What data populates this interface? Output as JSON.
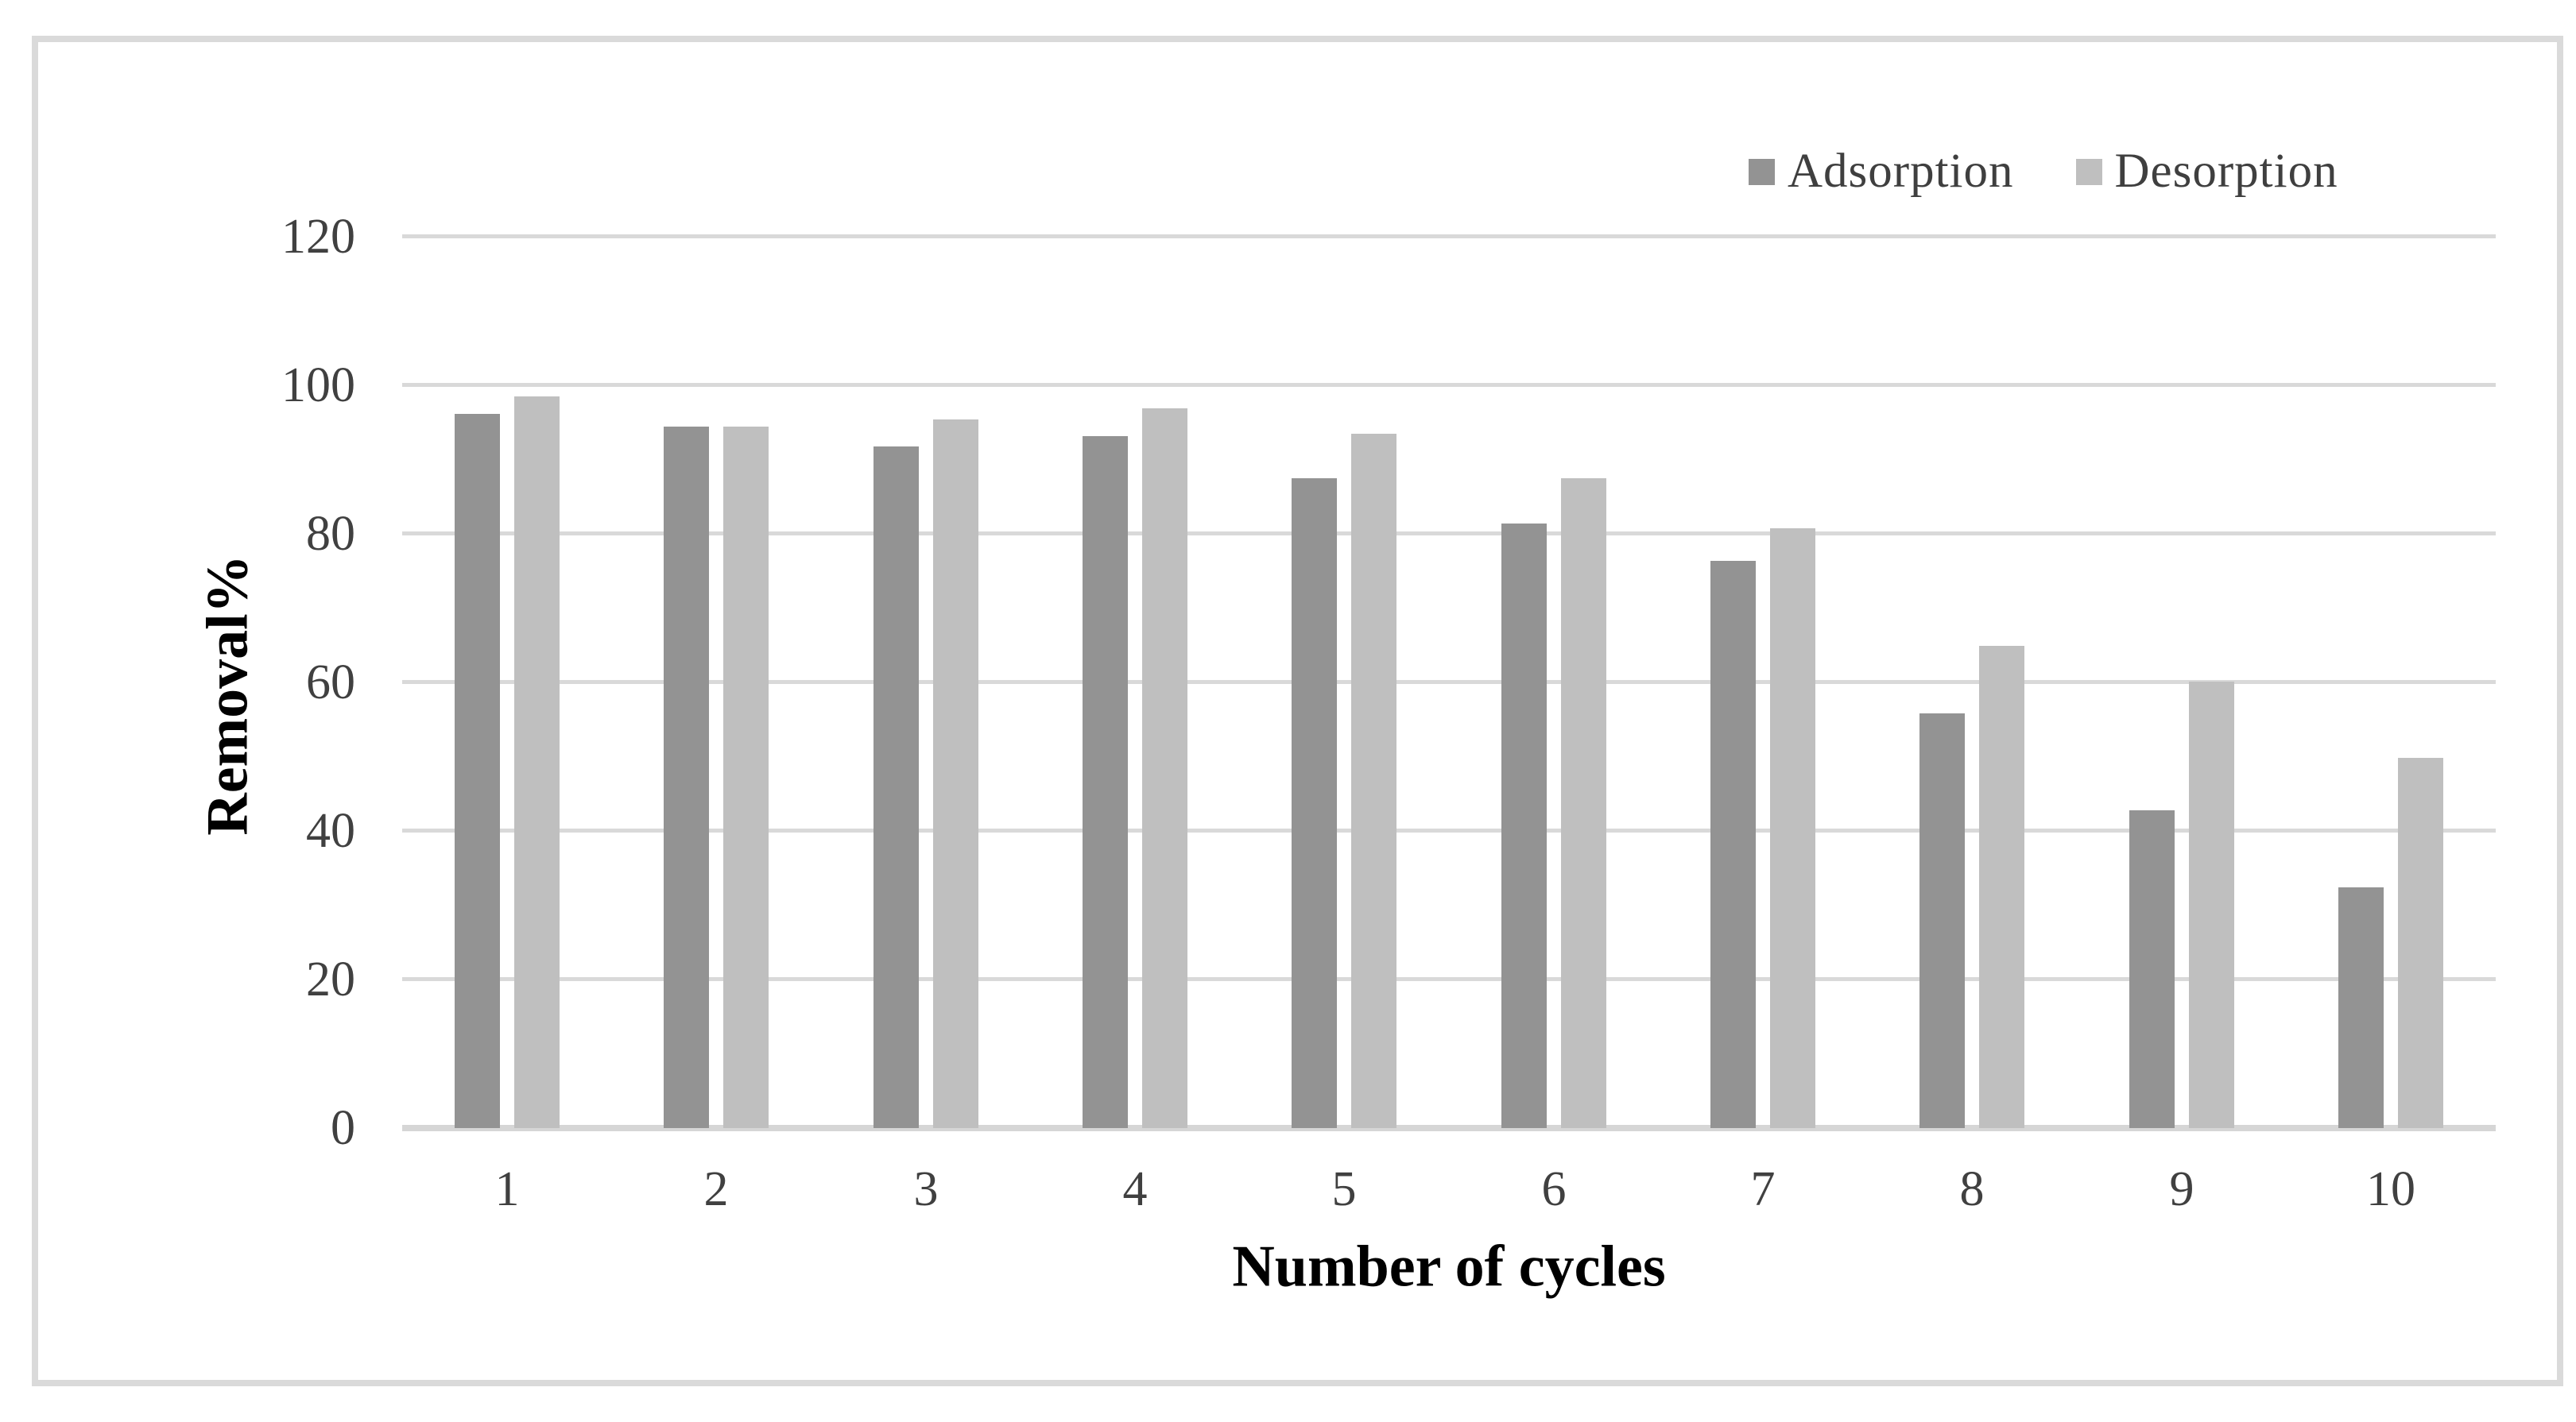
{
  "figure": {
    "background_color": "#FFFFFF",
    "frame_color": "#DADADA"
  },
  "chart_data": {
    "type": "bar",
    "title": "",
    "categories": [
      "1",
      "2",
      "3",
      "4",
      "5",
      "6",
      "7",
      "8",
      "9",
      "10"
    ],
    "series": [
      {
        "name": "Adsorption",
        "color": "#939393",
        "values": [
          96.2,
          94.4,
          91.8,
          93.2,
          87.5,
          81.4,
          76.4,
          55.8,
          42.8,
          32.4
        ]
      },
      {
        "name": "Desorption",
        "color": "#BFBFBF",
        "values": [
          98.5,
          94.4,
          95.4,
          96.9,
          93.5,
          87.5,
          80.8,
          64.9,
          60.1,
          49.8
        ]
      }
    ],
    "xlabel": "Number of cycles",
    "ylabel": "Removal%",
    "ylim": [
      0,
      120
    ],
    "yticks": [
      0,
      20,
      40,
      60,
      80,
      100,
      120
    ],
    "grid": "horizontal",
    "gridline_color": "#D9D9D9",
    "axis_line_color": "#D6D6D6",
    "tick_label_color": "#404040",
    "legend_position": "top-right"
  }
}
